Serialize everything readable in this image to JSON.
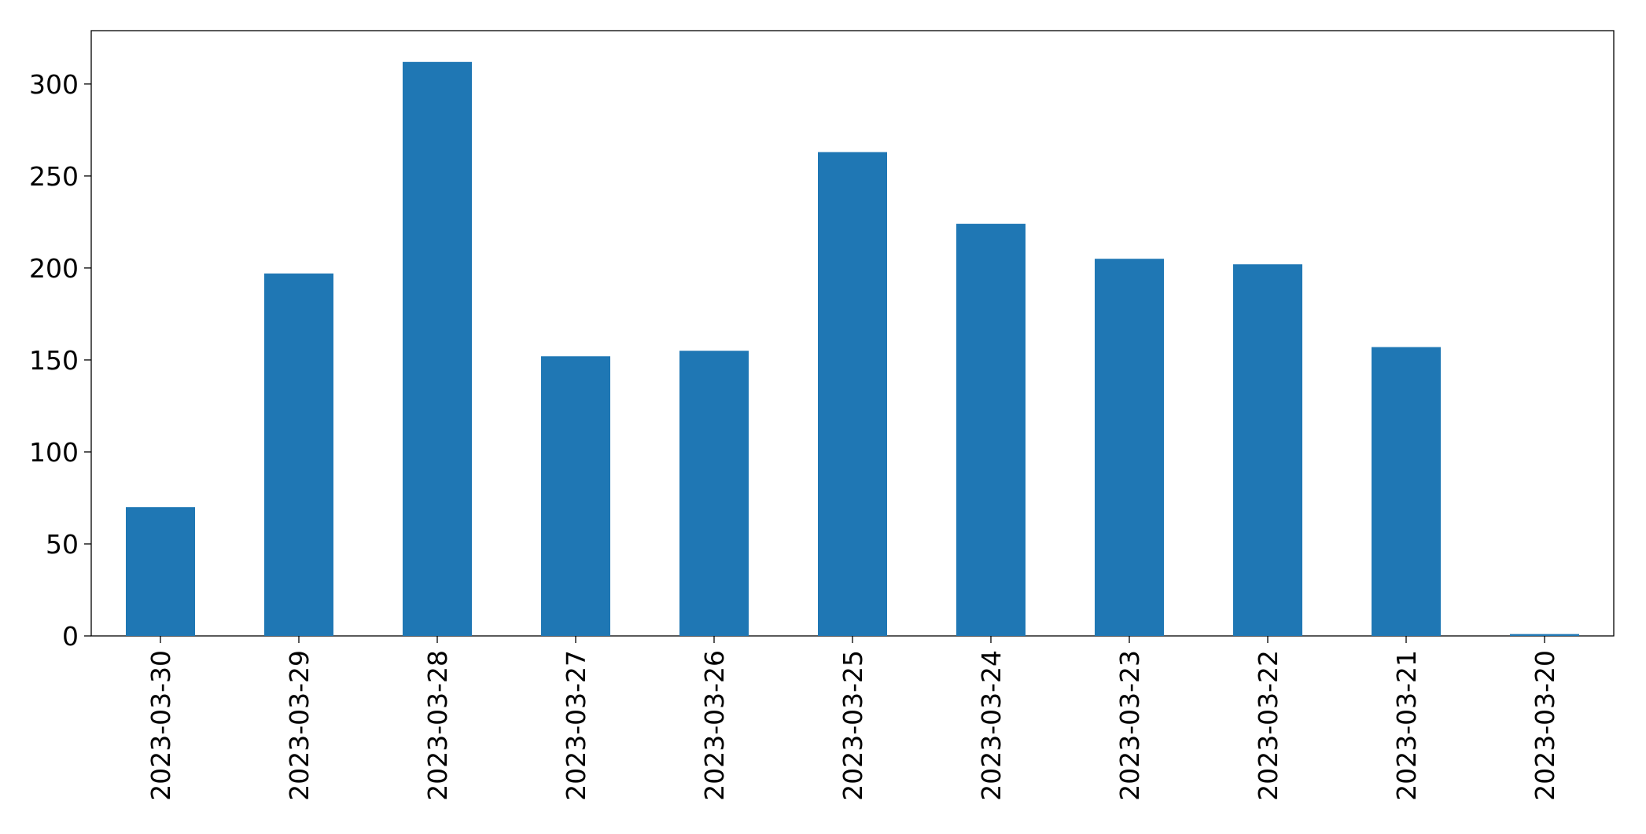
{
  "chart_data": {
    "type": "bar",
    "categories": [
      "2023-03-30",
      "2023-03-29",
      "2023-03-28",
      "2023-03-27",
      "2023-03-26",
      "2023-03-25",
      "2023-03-24",
      "2023-03-23",
      "2023-03-22",
      "2023-03-21",
      "2023-03-20"
    ],
    "values": [
      70,
      197,
      312,
      152,
      155,
      263,
      224,
      205,
      202,
      157,
      1
    ],
    "color": "#1f77b4",
    "ylim": [
      0,
      329
    ],
    "yticks": [
      0,
      50,
      100,
      150,
      200,
      250,
      300
    ],
    "grid": false
  }
}
